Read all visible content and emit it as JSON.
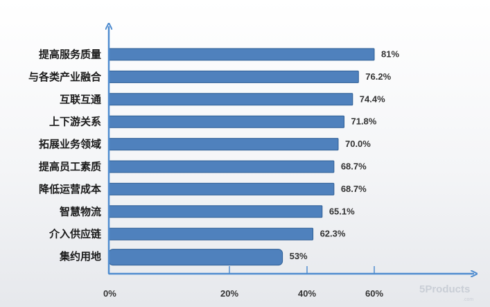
{
  "chart_data": {
    "type": "bar",
    "orientation": "horizontal",
    "categories": [
      "提高服务质量",
      "与各类产业融合",
      "互联互通",
      "上下游关系",
      "拓展业务领域",
      "提高员工素质",
      "降低运营成本",
      "智慧物流",
      "介入供应链",
      "集约用地"
    ],
    "values": [
      81,
      76.2,
      74.4,
      71.8,
      70.0,
      68.7,
      68.7,
      65.1,
      62.3,
      53
    ],
    "value_labels": [
      "81%",
      "76.2%",
      "74.4%",
      "71.8%",
      "70.0%",
      "68.7%",
      "68.7%",
      "65.1%",
      "62.3%",
      "53%"
    ],
    "x_ticks": [
      "0%",
      "20%",
      "40%",
      "60%"
    ],
    "x_tick_values": [
      0,
      20,
      40,
      60
    ],
    "title": "",
    "xlabel": "",
    "ylabel": "",
    "grid": false,
    "legend": "none"
  },
  "colors": {
    "bar_fill": "#4f81bd",
    "bar_stroke": "#2f5f95",
    "axis": "#4f8ccf"
  },
  "watermark": {
    "text": "5Products",
    "sub": ".com"
  }
}
